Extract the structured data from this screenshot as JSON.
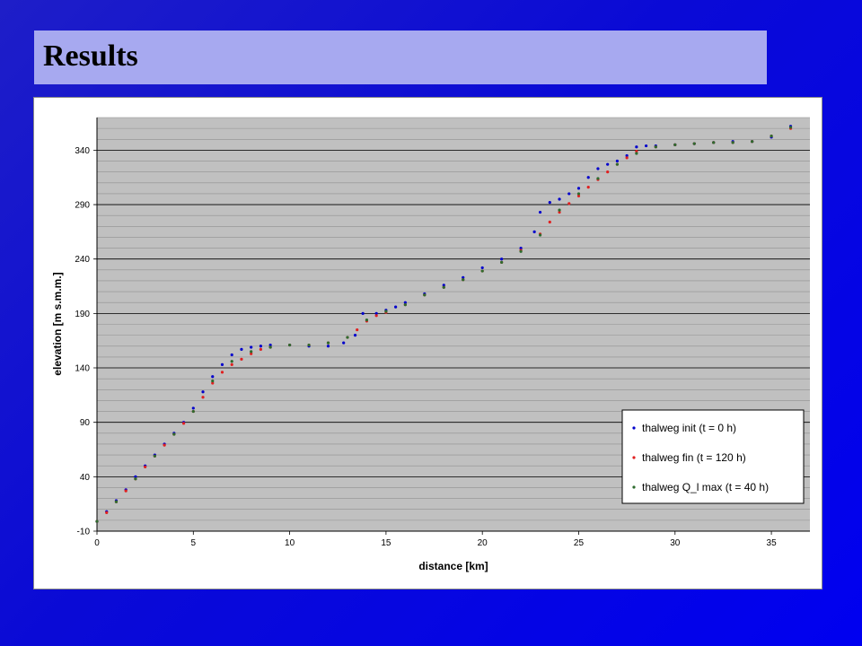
{
  "slide": {
    "title": "Results"
  },
  "colors": {
    "background": "#0a0ad6",
    "title_bar": "#a7a9f0",
    "plot_bg": "#c0c0c0",
    "grid": "#909090"
  },
  "chart_data": {
    "type": "scatter",
    "xlabel": "distance [km]",
    "ylabel": "elevation [m s.m.m.]",
    "xlim": [
      0,
      37
    ],
    "ylim": [
      -10,
      370
    ],
    "x_ticks": [
      0,
      5,
      10,
      15,
      20,
      25,
      30,
      35
    ],
    "y_ticks": [
      -10,
      40,
      90,
      140,
      190,
      240,
      290,
      340
    ],
    "grid": true,
    "legend_position": "bottom-right",
    "series": [
      {
        "name": "thalweg init (t = 0 h)",
        "color": "#0000cc",
        "x": [
          0,
          0.5,
          1,
          1.5,
          2,
          2.5,
          3,
          3.5,
          4,
          4.5,
          5,
          5.5,
          6,
          6.5,
          7,
          7.5,
          8,
          8.5,
          9,
          10,
          11,
          12,
          12.8,
          13.4,
          13.8,
          14.5,
          15,
          15.5,
          16,
          17,
          18,
          19,
          20,
          21,
          22,
          22.7,
          23,
          23.5,
          24,
          24.5,
          25,
          25.5,
          26,
          26.5,
          27,
          27.5,
          28,
          28.5,
          29,
          30,
          31,
          32,
          33,
          34,
          35,
          36
        ],
        "y": [
          -1,
          8,
          18,
          28,
          40,
          50,
          60,
          70,
          80,
          90,
          103,
          118,
          132,
          143,
          152,
          157,
          159,
          160,
          161,
          161,
          160,
          160,
          163,
          170,
          190,
          190,
          193,
          196,
          200,
          208,
          216,
          223,
          232,
          240,
          250,
          265,
          283,
          292,
          295,
          300,
          305,
          315,
          323,
          327,
          330,
          335,
          343,
          344,
          344,
          345,
          346,
          347,
          348,
          348,
          352,
          362
        ]
      },
      {
        "name": "thalweg fin (t = 120 h)",
        "color": "#e02020",
        "x": [
          0,
          0.5,
          1,
          1.5,
          2,
          2.5,
          3,
          3.5,
          4,
          4.5,
          5,
          5.5,
          6,
          6.5,
          7,
          7.5,
          8,
          8.5,
          9,
          10,
          11,
          12,
          13,
          13.5,
          14,
          14.5,
          15,
          16,
          17,
          18,
          19,
          20,
          21,
          22,
          23,
          23.5,
          24,
          24.5,
          25,
          25.5,
          26,
          26.5,
          27,
          27.5,
          28,
          29,
          30,
          31,
          32,
          33,
          34,
          35,
          36
        ],
        "y": [
          -1,
          7,
          17,
          27,
          38,
          49,
          59,
          69,
          79,
          89,
          100,
          113,
          126,
          136,
          143,
          148,
          153,
          157,
          159,
          161,
          161,
          163,
          168,
          175,
          183,
          188,
          191,
          198,
          207,
          214,
          221,
          229,
          237,
          248,
          263,
          274,
          283,
          291,
          298,
          306,
          313,
          320,
          327,
          333,
          339,
          343,
          345,
          346,
          347,
          347,
          348,
          353,
          360
        ]
      },
      {
        "name": "thalweg Q_l max (t = 40 h)",
        "color": "#2e6b2e",
        "x": [
          0,
          1,
          2,
          3,
          4,
          5,
          6,
          7,
          8,
          9,
          10,
          11,
          12,
          13,
          14,
          15,
          16,
          17,
          18,
          19,
          20,
          21,
          22,
          23,
          24,
          25,
          26,
          27,
          28,
          29,
          30,
          31,
          32,
          33,
          34,
          35,
          36
        ],
        "y": [
          -1,
          17,
          38,
          59,
          79,
          100,
          128,
          146,
          155,
          159,
          161,
          161,
          163,
          168,
          184,
          192,
          198,
          207,
          214,
          221,
          229,
          237,
          247,
          262,
          285,
          300,
          314,
          327,
          337,
          343,
          345,
          346,
          347,
          347,
          348,
          353,
          361
        ]
      }
    ]
  }
}
